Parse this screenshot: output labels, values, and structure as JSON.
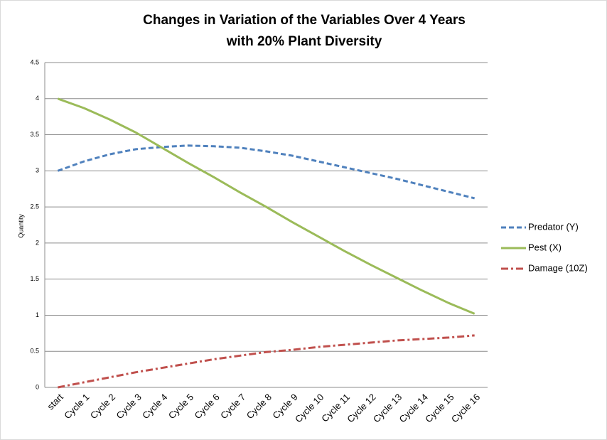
{
  "chart_data": {
    "type": "line",
    "title": [
      "Changes in Variation of the Variables Over 4 Years",
      "with 20% Plant Diversity"
    ],
    "ylabel": "Quantity",
    "categories": [
      "start",
      "Cycle 1",
      "Cycle 2",
      "Cycle 3",
      "Cycle 4",
      "Cycle 5",
      "Cycle 6",
      "Cycle 7",
      "Cycle 8",
      "Cycle 9",
      "Cycle 10",
      "Cycle 11",
      "Cycle 12",
      "Cycle 13",
      "Cycle 14",
      "Cycle 15",
      "Cycle 16"
    ],
    "series": [
      {
        "name": "Predator (Y)",
        "color": "#4f81bd",
        "dash": "dash",
        "values": [
          3.0,
          3.13,
          3.23,
          3.3,
          3.33,
          3.35,
          3.34,
          3.32,
          3.27,
          3.21,
          3.13,
          3.05,
          2.97,
          2.89,
          2.8,
          2.71,
          2.62
        ]
      },
      {
        "name": "Pest (X)",
        "color": "#9bbb59",
        "dash": "solid",
        "values": [
          4.0,
          3.87,
          3.71,
          3.53,
          3.32,
          3.11,
          2.91,
          2.7,
          2.5,
          2.29,
          2.09,
          1.89,
          1.7,
          1.52,
          1.34,
          1.17,
          1.02
        ]
      },
      {
        "name": "Damage (10Z)",
        "color": "#c0504d",
        "dash": "dashdot",
        "values": [
          0,
          0.07,
          0.14,
          0.21,
          0.27,
          0.33,
          0.39,
          0.44,
          0.49,
          0.52,
          0.56,
          0.59,
          0.62,
          0.65,
          0.67,
          0.69,
          0.72
        ]
      }
    ],
    "ylim": [
      0,
      4.5
    ],
    "yticks": [
      0,
      0.5,
      1,
      1.5,
      2,
      2.5,
      3,
      3.5,
      4,
      4.5
    ],
    "grid": true,
    "legend": "right"
  }
}
